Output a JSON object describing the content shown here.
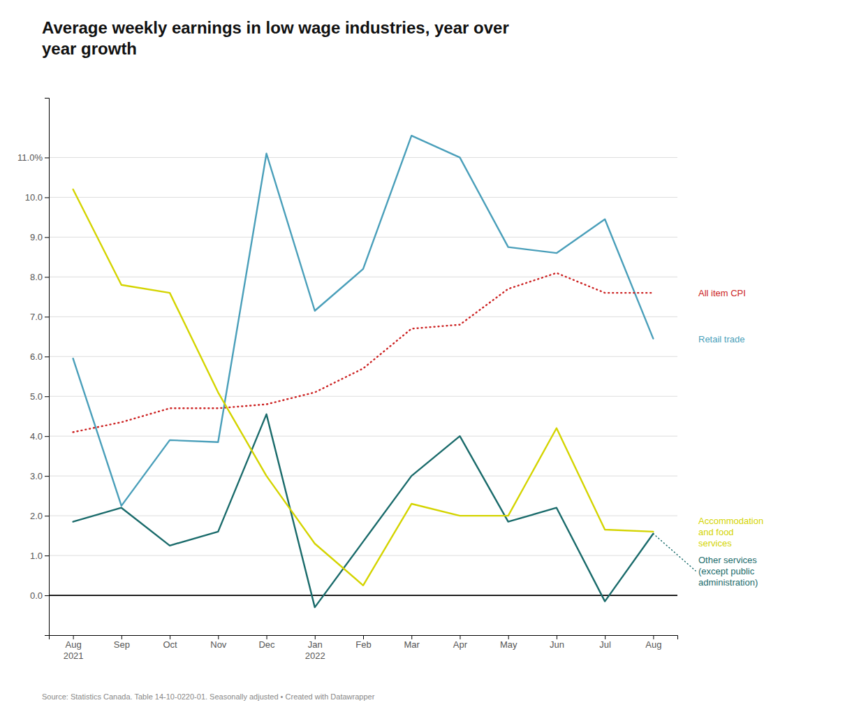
{
  "chart_data": {
    "type": "line",
    "title": "Average weekly earnings in low wage industries, year over\nyear growth",
    "source": "Source: Statistics Canada. Table 14-10-0220-01. Seasonally adjusted • Created with Datawrapper",
    "categories": [
      "Aug\n2021",
      "Sep",
      "Oct",
      "Nov",
      "Dec",
      "Jan\n2022",
      "Feb",
      "Mar",
      "Apr",
      "May",
      "Jun",
      "Jul",
      "Aug"
    ],
    "series": [
      {
        "name": "Retail trade",
        "color": "#4A9FBA",
        "line_style": "solid",
        "values": [
          5.95,
          2.25,
          3.9,
          3.85,
          11.1,
          7.15,
          8.2,
          11.55,
          11.0,
          8.75,
          8.6,
          9.45,
          6.45
        ]
      },
      {
        "name": "All item CPI",
        "color": "#CC2222",
        "line_style": "dotted",
        "values": [
          4.1,
          4.35,
          4.7,
          4.7,
          4.8,
          5.1,
          5.7,
          6.7,
          6.8,
          7.7,
          8.1,
          7.6,
          7.6
        ]
      },
      {
        "name": "Other services\n(except public\nadministration)",
        "color": "#1A6B6B",
        "line_style": "solid",
        "values": [
          1.85,
          2.2,
          1.25,
          1.6,
          4.55,
          -0.3,
          1.35,
          3.0,
          4.0,
          1.85,
          2.2,
          -0.15,
          1.55
        ]
      },
      {
        "name": "Accommodation\nand food\nservices",
        "color": "#D4D400",
        "line_style": "solid",
        "values": [
          10.2,
          7.8,
          7.6,
          5.1,
          3.0,
          1.3,
          0.25,
          2.3,
          2.0,
          2.0,
          4.2,
          1.65,
          1.6
        ]
      }
    ],
    "ylim": [
      -1.0,
      12.5
    ],
    "yticks": [
      {
        "value": 0.0,
        "label": "0.0"
      },
      {
        "value": 1.0,
        "label": "1.0"
      },
      {
        "value": 2.0,
        "label": "2.0"
      },
      {
        "value": 3.0,
        "label": "3.0"
      },
      {
        "value": 4.0,
        "label": "4.0"
      },
      {
        "value": 5.0,
        "label": "5.0"
      },
      {
        "value": 6.0,
        "label": "6.0"
      },
      {
        "value": 7.0,
        "label": "7.0"
      },
      {
        "value": 8.0,
        "label": "8.0"
      },
      {
        "value": 9.0,
        "label": "9.0"
      },
      {
        "value": 10.0,
        "label": "10.0"
      },
      {
        "value": 11.0,
        "label": "11.0%"
      }
    ],
    "grid": true
  }
}
